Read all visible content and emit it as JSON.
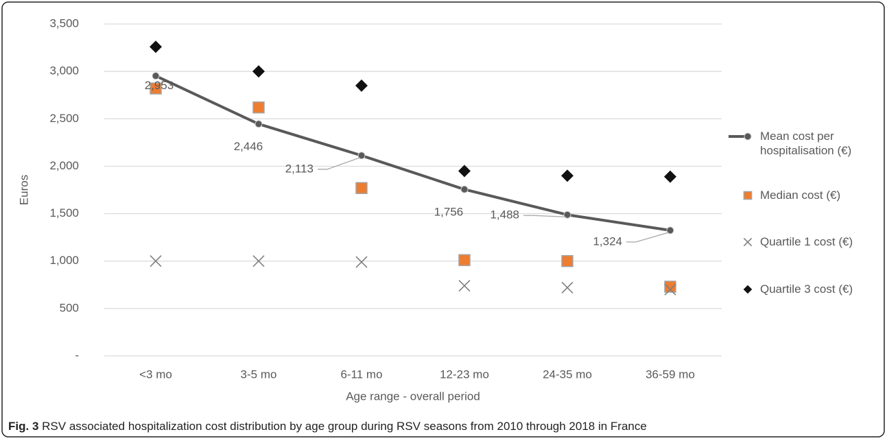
{
  "chart_data": {
    "type": "line",
    "y_label": "Euros",
    "x_label": "Age range - overall period",
    "caption_label": "Fig. 3",
    "caption_text": "RSV associated hospitalization cost distribution by age group during RSV seasons from 2010 through 2018 in France",
    "categories": [
      "<3 mo",
      "3-5 mo",
      "6-11 mo",
      "12-23 mo",
      "24-35 mo",
      "36-59 mo"
    ],
    "ylim": [
      0,
      3500
    ],
    "yticks": [
      {
        "value": 0,
        "label": "-"
      },
      500,
      {
        "value": 1000,
        "label": "1,000"
      },
      {
        "value": 1500,
        "label": "1,500"
      },
      {
        "value": 2000,
        "label": "2,000"
      },
      {
        "value": 2500,
        "label": "2,500"
      },
      {
        "value": 3000,
        "label": "3,000"
      },
      {
        "value": 3500,
        "label": "3,500"
      }
    ],
    "grid": true,
    "legend": "right",
    "series": [
      {
        "name": "Mean cost per hospitalisation (€)",
        "color": "#595959",
        "marker": "circle",
        "line": true,
        "values": [
          2953,
          2446,
          2113,
          1756,
          1488,
          1324
        ],
        "value_labels": [
          "2,953",
          "2,446",
          "2,113",
          "1,756",
          "1,488",
          "1,324"
        ]
      },
      {
        "name": "Median cost (€)",
        "color": "#ed7d31",
        "marker": "square",
        "line": false,
        "values": [
          2820,
          2620,
          1770,
          1010,
          1000,
          730
        ]
      },
      {
        "name": "Quartile 1 cost (€)",
        "color": "#7f7f7f",
        "marker": "x",
        "line": false,
        "values": [
          1000,
          1000,
          990,
          740,
          720,
          700
        ]
      },
      {
        "name": "Quartile 3 cost (€)",
        "color": "#111111",
        "marker": "diamond",
        "line": false,
        "values": [
          3260,
          3000,
          2850,
          1950,
          1900,
          1890
        ]
      }
    ]
  }
}
